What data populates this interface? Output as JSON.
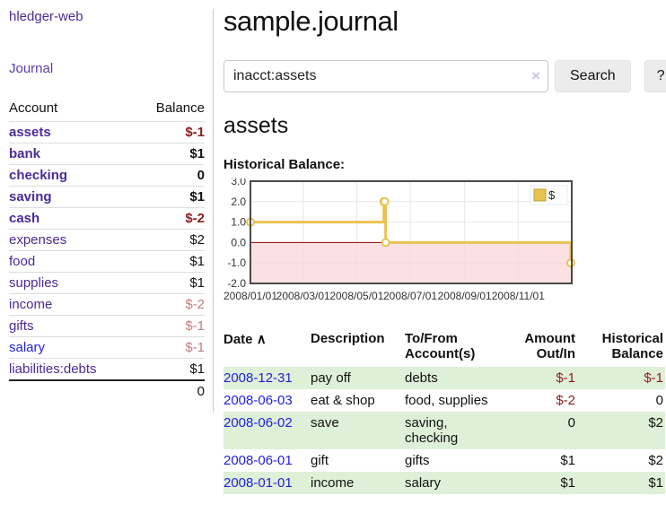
{
  "app": {
    "title": "hledger-web"
  },
  "sidebar": {
    "nav_journal": "Journal",
    "table": {
      "headers": {
        "account": "Account",
        "balance": "Balance"
      },
      "rows": [
        {
          "label": "assets",
          "level": 1,
          "bold": true,
          "balance": "$-1",
          "balance_style": "neg-strong"
        },
        {
          "label": "bank",
          "level": 2,
          "bold": true,
          "balance": "$1",
          "balance_style": "bold"
        },
        {
          "label": "checking",
          "level": 3,
          "bold": true,
          "balance": "0",
          "balance_style": "bold"
        },
        {
          "label": "saving",
          "level": 3,
          "bold": true,
          "balance": "$1",
          "balance_style": "bold"
        },
        {
          "label": "cash",
          "level": 2,
          "bold": true,
          "balance": "$-2",
          "balance_style": "neg-strong"
        },
        {
          "label": "expenses",
          "level": 1,
          "bold": false,
          "balance": "$2",
          "balance_style": "plain"
        },
        {
          "label": "food",
          "level": 2,
          "bold": false,
          "balance": "$1",
          "balance_style": "plain"
        },
        {
          "label": "supplies",
          "level": 2,
          "bold": false,
          "balance": "$1",
          "balance_style": "plain"
        },
        {
          "label": "income",
          "level": 1,
          "bold": false,
          "balance": "$-2",
          "balance_style": "neg-weak"
        },
        {
          "label": "gifts",
          "level": 2,
          "bold": false,
          "balance": "$-1",
          "balance_style": "neg-weak"
        },
        {
          "label": "salary",
          "level": 2,
          "bold": false,
          "balance": "$-1",
          "balance_style": "neg-weak",
          "label_color": "blue"
        },
        {
          "label": "liabilities:debts",
          "level": 1,
          "bold": false,
          "balance": "$1",
          "balance_style": "plain"
        }
      ],
      "total": "0"
    }
  },
  "main": {
    "title": "sample.journal",
    "search": {
      "value": "inacct:assets",
      "clear_icon": "×",
      "button_label": "Search",
      "help_label": "?"
    },
    "account_heading": "assets",
    "chart_label": "Historical Balance:",
    "register": {
      "headers": {
        "date": "Date",
        "sort_caret": "∧",
        "description": "Description",
        "accounts": "To/From Account(s)",
        "amount": "Amount Out/In",
        "balance": "Historical Balance"
      },
      "rows": [
        {
          "date": "2008-12-31",
          "description": "pay off",
          "accounts": "debts",
          "amount": "$-1",
          "balance": "$-1"
        },
        {
          "date": "2008-06-03",
          "description": "eat & shop",
          "accounts": "food, supplies",
          "amount": "$-2",
          "balance": "0"
        },
        {
          "date": "2008-06-02",
          "description": "save",
          "accounts": "saving, checking",
          "amount": "0",
          "balance": "$2"
        },
        {
          "date": "2008-06-01",
          "description": "gift",
          "accounts": "gifts",
          "amount": "$1",
          "balance": "$2"
        },
        {
          "date": "2008-01-01",
          "description": "income",
          "accounts": "salary",
          "amount": "$1",
          "balance": "$1"
        }
      ]
    }
  },
  "chart_data": {
    "type": "line",
    "title": "Historical Balance",
    "step": true,
    "series": [
      {
        "name": "$",
        "color": "#e9c351",
        "points": [
          [
            "2008-01-01",
            1
          ],
          [
            "2008-06-01",
            2
          ],
          [
            "2008-06-02",
            2
          ],
          [
            "2008-06-03",
            0
          ],
          [
            "2008-12-31",
            -1
          ]
        ]
      }
    ],
    "x_range": [
      "2008-01-01",
      "2009-01-01"
    ],
    "x_ticks": [
      {
        "date": "2008-01-01",
        "label": "2008/01/01"
      },
      {
        "date": "2008-03-01",
        "label": "2008/03/01"
      },
      {
        "date": "2008-05-01",
        "label": "2008/05/01"
      },
      {
        "date": "2008-07-01",
        "label": "2008/07/01"
      },
      {
        "date": "2008-09-01",
        "label": "2008/09/01"
      },
      {
        "date": "2008-11-01",
        "label": "2008/11/01"
      }
    ],
    "y_ticks": [
      3.0,
      2.0,
      1.0,
      0.0,
      -1.0,
      -2.0
    ],
    "ylim": [
      -2,
      3
    ],
    "legend": {
      "label": "$",
      "position": "top-right"
    },
    "grid": true,
    "colors": {
      "line": "#e9c351",
      "marker_fill": "#ffffff",
      "negative_region": "#f9d7d7",
      "zero_line": "#8b0000",
      "gridline": "#e6e6e6",
      "frame": "#4a4a4a"
    }
  },
  "colors": {
    "accent_purple": "#4d2a96",
    "link_blue": "#1f1fe0",
    "negative_strong": "#8e1b1b",
    "negative_weak": "#c47d7d",
    "row_green": "#dff0d8"
  }
}
